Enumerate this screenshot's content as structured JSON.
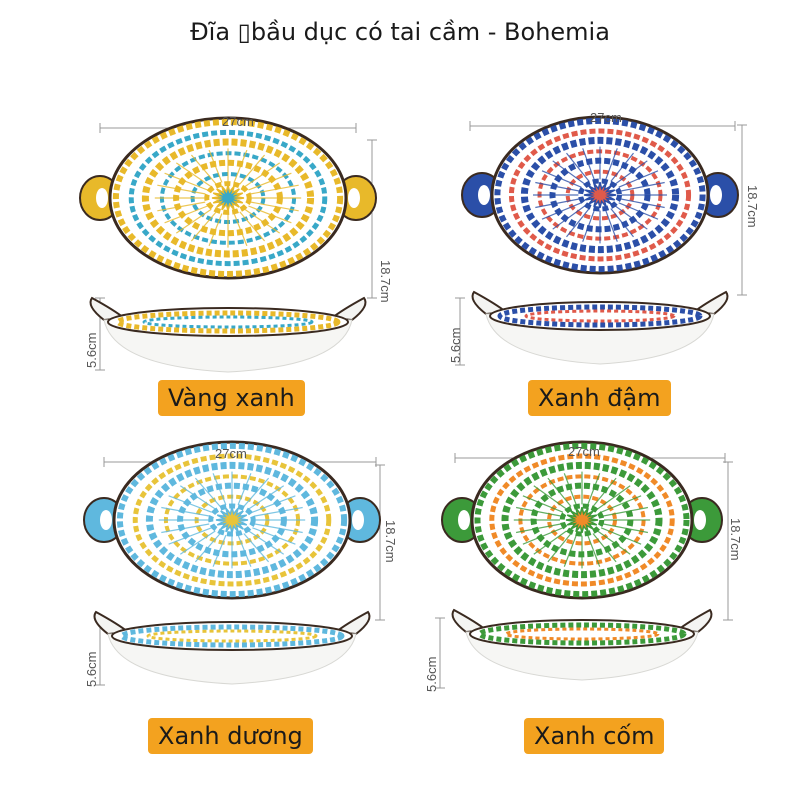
{
  "title": "Đĩa ▯bầu dục có tai cầm - Bohemia",
  "width_label": "27cm",
  "height_label": "18.7cm",
  "depth_label": "5.6cm",
  "variants": [
    {
      "name": "Vàng xanh",
      "colors": {
        "primary": "#e8b92a",
        "secondary": "#38a8c8",
        "accent": "#ffffff"
      }
    },
    {
      "name": "Xanh đậm",
      "colors": {
        "primary": "#2b4fa8",
        "secondary": "#e05a4a",
        "accent": "#ffffff"
      }
    },
    {
      "name": "Xanh dương",
      "colors": {
        "primary": "#5fb8de",
        "secondary": "#e8c43a",
        "accent": "#ffffff"
      }
    },
    {
      "name": "Xanh cốm",
      "colors": {
        "primary": "#3c9a3a",
        "secondary": "#f08a28",
        "accent": "#ffffff"
      }
    }
  ]
}
